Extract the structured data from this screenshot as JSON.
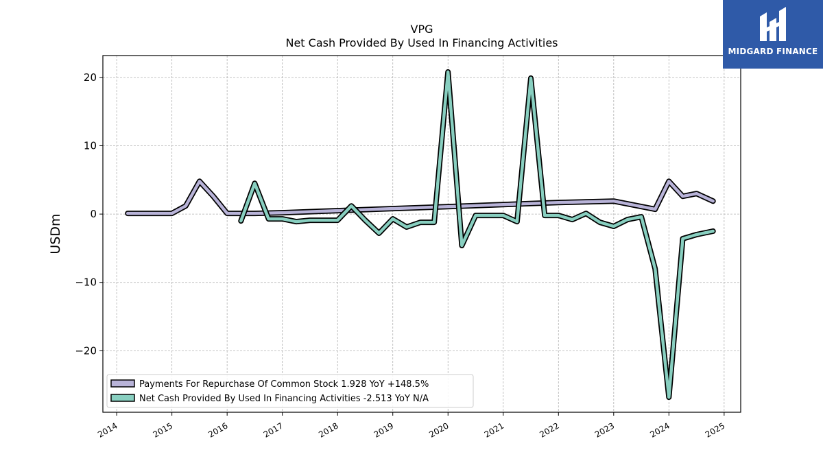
{
  "brand": {
    "name": "MIDGARD FINANCE",
    "bg_color": "#2f5aa8"
  },
  "chart_data": {
    "type": "line",
    "title": "VPG",
    "subtitle": "Net Cash Provided By Used In Financing Activities",
    "ylabel": "USDm",
    "xlabel": "",
    "xlim": [
      2013.75,
      2025.3
    ],
    "ylim": [
      -29,
      23.2
    ],
    "x_ticks": [
      2014,
      2015,
      2016,
      2017,
      2018,
      2019,
      2020,
      2021,
      2022,
      2023,
      2024,
      2025
    ],
    "y_ticks": [
      20,
      10,
      0,
      -10,
      -20
    ],
    "y_tick_labels": [
      "20",
      "10",
      "0",
      "−10",
      "−20"
    ],
    "grid": true,
    "legend_position": "lower-left",
    "series": [
      {
        "name": "Payments For Repurchase Of Common Stock",
        "legend_label": "Payments For Repurchase Of Common Stock  1.928 YoY +148.5%",
        "color": "#b8b3d8",
        "points": [
          [
            2014.2,
            0.1
          ],
          [
            2014.5,
            0.1
          ],
          [
            2014.75,
            0.1
          ],
          [
            2015.0,
            0.1
          ],
          [
            2015.25,
            1.2
          ],
          [
            2015.5,
            4.8
          ],
          [
            2015.75,
            2.6
          ],
          [
            2016.0,
            0.1
          ],
          [
            2016.25,
            0.1
          ],
          [
            2016.5,
            0.1
          ],
          [
            2017.0,
            0.2
          ],
          [
            2018.0,
            0.5
          ],
          [
            2019.0,
            0.8
          ],
          [
            2020.0,
            1.1
          ],
          [
            2021.0,
            1.4
          ],
          [
            2022.0,
            1.7
          ],
          [
            2023.0,
            1.9
          ],
          [
            2023.75,
            0.7
          ],
          [
            2024.0,
            4.8
          ],
          [
            2024.25,
            2.6
          ],
          [
            2024.5,
            3.0
          ],
          [
            2024.8,
            1.9
          ]
        ]
      },
      {
        "name": "Net Cash Provided By Used In Financing Activities",
        "legend_label": "Net Cash Provided By Used In Financing Activities  -2.513 YoY N/A",
        "color": "#88cfc0",
        "points": [
          [
            2016.25,
            -1.0
          ],
          [
            2016.5,
            4.5
          ],
          [
            2016.75,
            -0.7
          ],
          [
            2017.0,
            -0.7
          ],
          [
            2017.25,
            -1.1
          ],
          [
            2017.5,
            -0.9
          ],
          [
            2017.75,
            -0.9
          ],
          [
            2018.0,
            -0.9
          ],
          [
            2018.25,
            1.2
          ],
          [
            2018.5,
            -0.9
          ],
          [
            2018.75,
            -2.8
          ],
          [
            2019.0,
            -0.7
          ],
          [
            2019.25,
            -1.9
          ],
          [
            2019.5,
            -1.2
          ],
          [
            2019.75,
            -1.2
          ],
          [
            2020.0,
            20.8
          ],
          [
            2020.25,
            -4.6
          ],
          [
            2020.5,
            -0.2
          ],
          [
            2020.75,
            -0.2
          ],
          [
            2021.0,
            -0.2
          ],
          [
            2021.25,
            -1.1
          ],
          [
            2021.5,
            19.9
          ],
          [
            2021.75,
            -0.2
          ],
          [
            2022.0,
            -0.2
          ],
          [
            2022.25,
            -0.8
          ],
          [
            2022.5,
            0.1
          ],
          [
            2022.75,
            -1.2
          ],
          [
            2023.0,
            -1.8
          ],
          [
            2023.25,
            -0.8
          ],
          [
            2023.5,
            -0.4
          ],
          [
            2023.75,
            -8.0
          ],
          [
            2024.0,
            -26.8
          ],
          [
            2024.25,
            -3.6
          ],
          [
            2024.5,
            -3.0
          ],
          [
            2024.8,
            -2.5
          ]
        ]
      }
    ]
  }
}
